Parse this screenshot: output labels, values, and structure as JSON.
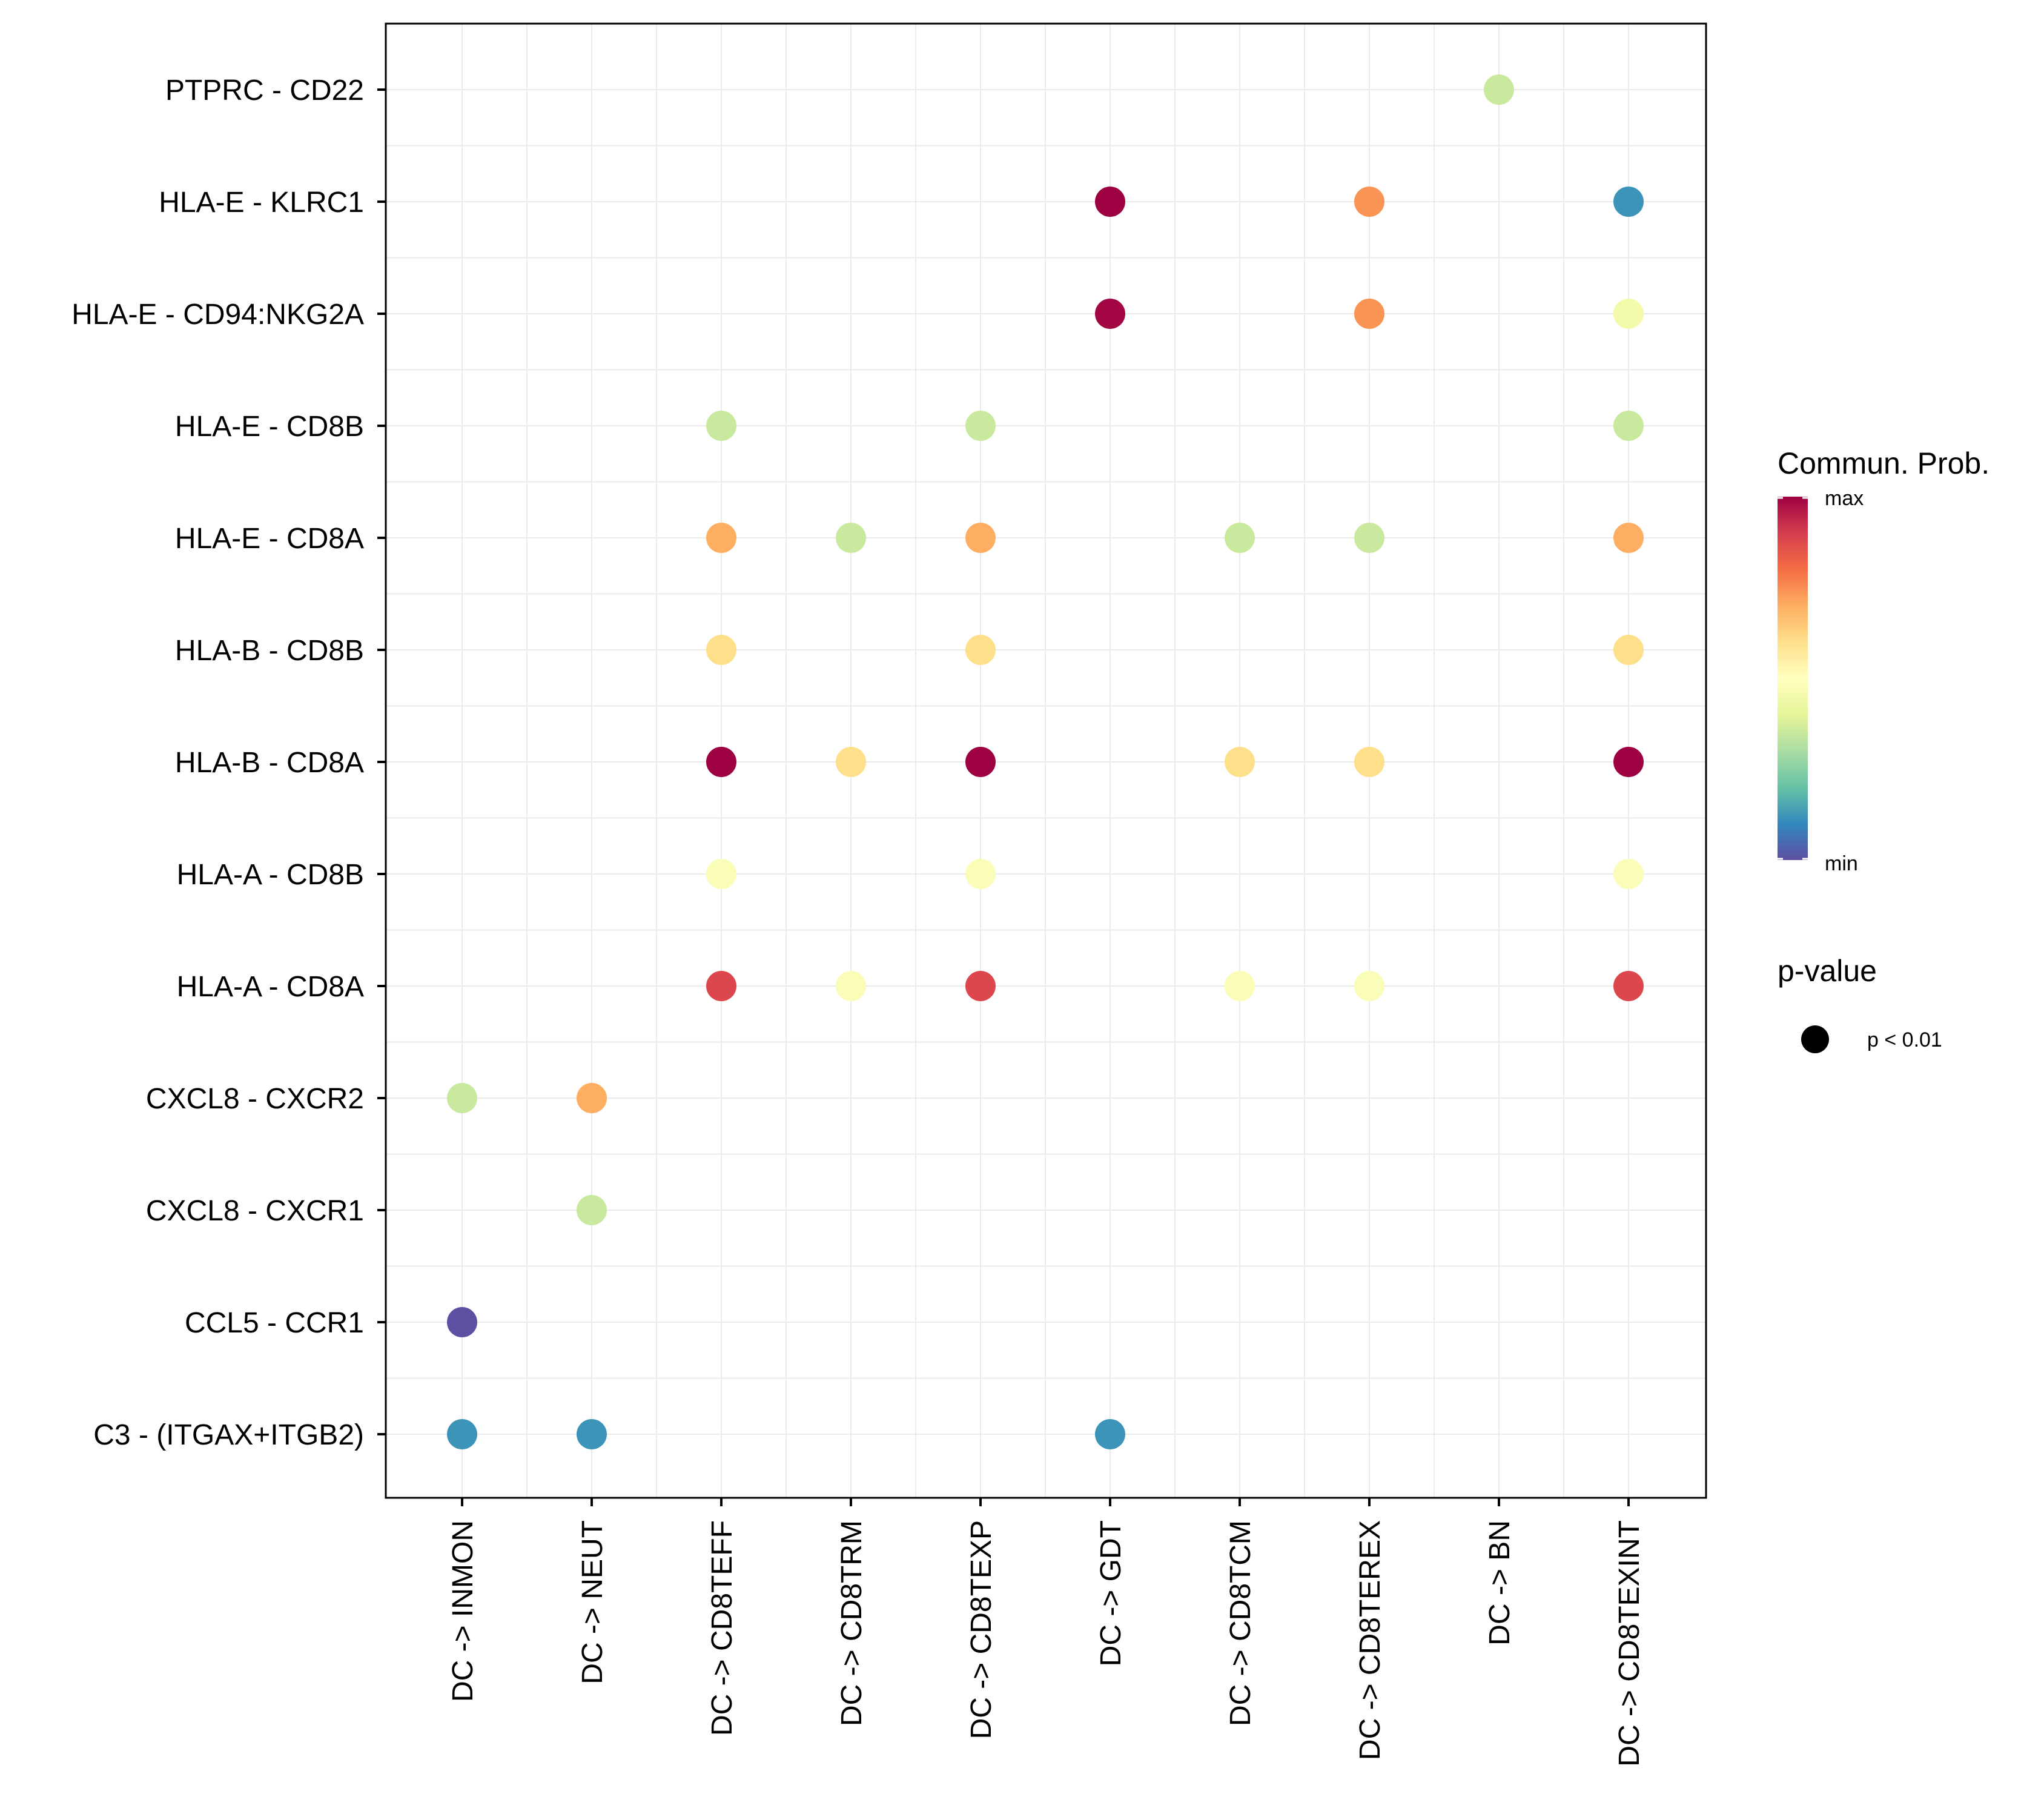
{
  "chart_data": {
    "type": "bubble-dot",
    "x_categories": [
      "DC -> INMON",
      "DC -> NEUT",
      "DC -> CD8TEFF",
      "DC -> CD8TRM",
      "DC -> CD8TEXP",
      "DC -> GDT",
      "DC -> CD8TCM",
      "DC -> CD8TEREX",
      "DC -> BN",
      "DC -> CD8TEXINT"
    ],
    "y_categories": [
      "PTPRC - CD22",
      "HLA-E - KLRC1",
      "HLA-E - CD94:NKG2A",
      "HLA-E - CD8B",
      "HLA-E - CD8A",
      "HLA-B - CD8B",
      "HLA-B - CD8A",
      "HLA-A - CD8B",
      "HLA-A - CD8A",
      "CXCL8 - CXCR2",
      "CXCL8 - CXCR1",
      "CCL5 - CCR1",
      "C3 - (ITGAX+ITGB2)"
    ],
    "points": [
      {
        "x": "DC -> BN",
        "y": "PTPRC - CD22",
        "prob": 0.35
      },
      {
        "x": "DC -> GDT",
        "y": "HLA-E - KLRC1",
        "prob": 1.0
      },
      {
        "x": "DC -> CD8TEREX",
        "y": "HLA-E - KLRC1",
        "prob": 0.74
      },
      {
        "x": "DC -> CD8TEXINT",
        "y": "HLA-E - KLRC1",
        "prob": 0.12
      },
      {
        "x": "DC -> GDT",
        "y": "HLA-E - CD94:NKG2A",
        "prob": 0.99
      },
      {
        "x": "DC -> CD8TEREX",
        "y": "HLA-E - CD94:NKG2A",
        "prob": 0.74
      },
      {
        "x": "DC -> CD8TEXINT",
        "y": "HLA-E - CD94:NKG2A",
        "prob": 0.45
      },
      {
        "x": "DC -> CD8TEFF",
        "y": "HLA-E - CD8B",
        "prob": 0.35
      },
      {
        "x": "DC -> CD8TEXP",
        "y": "HLA-E - CD8B",
        "prob": 0.35
      },
      {
        "x": "DC -> CD8TEXINT",
        "y": "HLA-E - CD8B",
        "prob": 0.35
      },
      {
        "x": "DC -> CD8TEFF",
        "y": "HLA-E - CD8A",
        "prob": 0.7
      },
      {
        "x": "DC -> CD8TRM",
        "y": "HLA-E - CD8A",
        "prob": 0.35
      },
      {
        "x": "DC -> CD8TEXP",
        "y": "HLA-E - CD8A",
        "prob": 0.7
      },
      {
        "x": "DC -> CD8TCM",
        "y": "HLA-E - CD8A",
        "prob": 0.35
      },
      {
        "x": "DC -> CD8TEREX",
        "y": "HLA-E - CD8A",
        "prob": 0.35
      },
      {
        "x": "DC -> CD8TEXINT",
        "y": "HLA-E - CD8A",
        "prob": 0.7
      },
      {
        "x": "DC -> CD8TEFF",
        "y": "HLA-B - CD8B",
        "prob": 0.6
      },
      {
        "x": "DC -> CD8TEXP",
        "y": "HLA-B - CD8B",
        "prob": 0.6
      },
      {
        "x": "DC -> CD8TEXINT",
        "y": "HLA-B - CD8B",
        "prob": 0.6
      },
      {
        "x": "DC -> CD8TEFF",
        "y": "HLA-B - CD8A",
        "prob": 1.0
      },
      {
        "x": "DC -> CD8TRM",
        "y": "HLA-B - CD8A",
        "prob": 0.6
      },
      {
        "x": "DC -> CD8TEXP",
        "y": "HLA-B - CD8A",
        "prob": 1.0
      },
      {
        "x": "DC -> CD8TCM",
        "y": "HLA-B - CD8A",
        "prob": 0.6
      },
      {
        "x": "DC -> CD8TEREX",
        "y": "HLA-B - CD8A",
        "prob": 0.6
      },
      {
        "x": "DC -> CD8TEXINT",
        "y": "HLA-B - CD8A",
        "prob": 1.0
      },
      {
        "x": "DC -> CD8TEFF",
        "y": "HLA-A - CD8B",
        "prob": 0.48
      },
      {
        "x": "DC -> CD8TEXP",
        "y": "HLA-A - CD8B",
        "prob": 0.48
      },
      {
        "x": "DC -> CD8TEXINT",
        "y": "HLA-A - CD8B",
        "prob": 0.48
      },
      {
        "x": "DC -> CD8TEFF",
        "y": "HLA-A - CD8A",
        "prob": 0.88
      },
      {
        "x": "DC -> CD8TRM",
        "y": "HLA-A - CD8A",
        "prob": 0.48
      },
      {
        "x": "DC -> CD8TEXP",
        "y": "HLA-A - CD8A",
        "prob": 0.88
      },
      {
        "x": "DC -> CD8TCM",
        "y": "HLA-A - CD8A",
        "prob": 0.48
      },
      {
        "x": "DC -> CD8TEREX",
        "y": "HLA-A - CD8A",
        "prob": 0.48
      },
      {
        "x": "DC -> CD8TEXINT",
        "y": "HLA-A - CD8A",
        "prob": 0.88
      },
      {
        "x": "DC -> INMON",
        "y": "CXCL8 - CXCR2",
        "prob": 0.35
      },
      {
        "x": "DC -> NEUT",
        "y": "CXCL8 - CXCR2",
        "prob": 0.7
      },
      {
        "x": "DC -> NEUT",
        "y": "CXCL8 - CXCR1",
        "prob": 0.35
      },
      {
        "x": "DC -> INMON",
        "y": "CCL5 - CCR1",
        "prob": 0.0
      },
      {
        "x": "DC -> INMON",
        "y": "C3 - (ITGAX+ITGB2)",
        "prob": 0.12
      },
      {
        "x": "DC -> NEUT",
        "y": "C3 - (ITGAX+ITGB2)",
        "prob": 0.12
      },
      {
        "x": "DC -> GDT",
        "y": "C3 - (ITGAX+ITGB2)",
        "prob": 0.12
      }
    ],
    "colorbar": {
      "title": "Commun. Prob.",
      "max_label": "max",
      "min_label": "min",
      "palette": [
        "#5E4FA2",
        "#3288BD",
        "#66C2A5",
        "#ABDDA4",
        "#E6F598",
        "#FFFFBF",
        "#FEE08B",
        "#FDAE61",
        "#F46D43",
        "#D53E4F",
        "#9E0142"
      ]
    },
    "size_legend": {
      "title": "p-value",
      "label": "p < 0.01"
    }
  }
}
